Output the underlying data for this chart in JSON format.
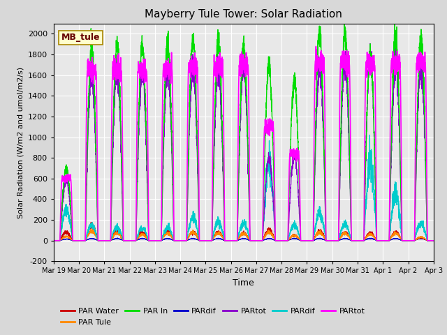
{
  "title": "Mayberry Tule Tower: Solar Radiation",
  "xlabel": "Time",
  "ylabel": "Solar Radiation (W/m2 and umol/m2/s)",
  "ylim": [
    -200,
    2100
  ],
  "yticks": [
    -200,
    0,
    200,
    400,
    600,
    800,
    1000,
    1200,
    1400,
    1600,
    1800,
    2000
  ],
  "num_days": 15,
  "annotation_text": "MB_tule",
  "plot_bg_color": "#e8e8e8",
  "grid_color": "#ffffff",
  "title_fontsize": 11,
  "xtick_labels": [
    "Mar 19",
    "Mar 20",
    "Mar 21",
    "Mar 22",
    "Mar 23",
    "Mar 24",
    "Mar 25",
    "Mar 26",
    "Mar 27",
    "Mar 28",
    "Mar 29",
    "Mar 30",
    "Mar 31",
    "Apr 1",
    "Apr 2",
    "Apr 3"
  ],
  "colors": {
    "par_water": "#cc0000",
    "par_tule": "#ff8800",
    "par_in": "#00dd00",
    "pardif1": "#0000cc",
    "partot1": "#8800cc",
    "pardif2": "#00cccc",
    "partot2": "#ff00ff"
  },
  "legend_entries": [
    {
      "label": "PAR Water",
      "color": "#cc0000"
    },
    {
      "label": "PAR Tule",
      "color": "#ff8800"
    },
    {
      "label": "PAR In",
      "color": "#00dd00"
    },
    {
      "label": "PARdif",
      "color": "#0000cc"
    },
    {
      "label": "PARtot",
      "color": "#8800cc"
    },
    {
      "label": "PARdif",
      "color": "#00cccc"
    },
    {
      "label": "PARtot",
      "color": "#ff00ff"
    }
  ],
  "par_in_peaks": [
    700,
    1860,
    1890,
    1880,
    1900,
    1950,
    1940,
    1870,
    1680,
    1550,
    1990,
    1990,
    1800,
    1980,
    1960
  ],
  "par_water_peaks": [
    80,
    150,
    100,
    80,
    90,
    80,
    80,
    70,
    100,
    50,
    90,
    80,
    70,
    80,
    30
  ],
  "par_tule_peaks": [
    40,
    90,
    70,
    60,
    70,
    80,
    70,
    70,
    80,
    50,
    80,
    70,
    60,
    70,
    35
  ],
  "partot2_peaks": [
    600,
    1640,
    1640,
    1640,
    1660,
    1680,
    1690,
    1700,
    1100,
    840,
    1710,
    1720,
    1700,
    1710,
    1720
  ],
  "pardif1_peaks": [
    15,
    20,
    20,
    20,
    20,
    20,
    20,
    20,
    20,
    20,
    20,
    20,
    20,
    20,
    20
  ],
  "partot1_peaks": [
    580,
    1620,
    1640,
    1640,
    1660,
    1670,
    1680,
    1690,
    790,
    830,
    1700,
    1710,
    1790,
    1700,
    1710
  ],
  "pardif2_peaks": [
    300,
    150,
    130,
    120,
    130,
    220,
    180,
    170,
    750,
    150,
    270,
    160,
    760,
    450,
    170
  ]
}
